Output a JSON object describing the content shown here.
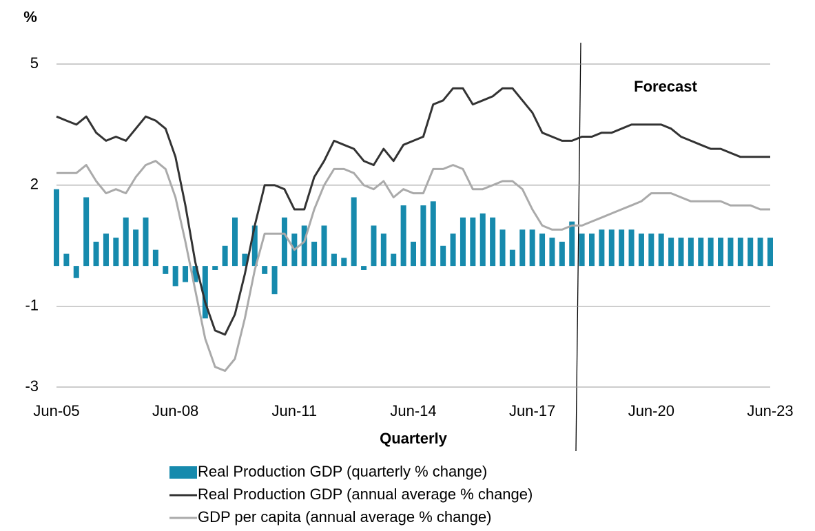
{
  "chart_data": {
    "type": "bar-line",
    "y_unit": "%",
    "x_title": "Quarterly",
    "annotation": "Forecast",
    "categories": [
      "Jun-05",
      null,
      null,
      null,
      null,
      null,
      null,
      null,
      null,
      null,
      null,
      null,
      "Jun-08",
      null,
      null,
      null,
      null,
      null,
      null,
      null,
      null,
      null,
      null,
      null,
      "Jun-11",
      null,
      null,
      null,
      null,
      null,
      null,
      null,
      null,
      null,
      null,
      null,
      "Jun-14",
      null,
      null,
      null,
      null,
      null,
      null,
      null,
      null,
      null,
      null,
      null,
      "Jun-17",
      null,
      null,
      null,
      null,
      null,
      null,
      null,
      null,
      null,
      null,
      null,
      "Jun-20",
      null,
      null,
      null,
      null,
      null,
      null,
      null,
      null,
      null,
      null,
      null,
      "Jun-23"
    ],
    "series": [
      {
        "name": "Real Production GDP (quarterly % change)",
        "kind": "bar",
        "color": "#168aad",
        "values": [
          1.9,
          0.3,
          -0.3,
          1.7,
          0.6,
          0.8,
          0.7,
          1.2,
          0.9,
          1.2,
          0.4,
          -0.2,
          -0.5,
          -0.4,
          -0.4,
          -1.3,
          -0.1,
          0.5,
          1.2,
          0.3,
          1.0,
          -0.2,
          -0.7,
          1.2,
          0.8,
          1.0,
          0.6,
          1.0,
          0.3,
          0.2,
          1.7,
          -0.1,
          1.0,
          0.8,
          0.3,
          1.5,
          0.6,
          1.5,
          1.6,
          0.5,
          0.8,
          1.2,
          1.2,
          1.3,
          1.2,
          0.9,
          0.4,
          0.9,
          0.9,
          0.8,
          0.7,
          0.6,
          1.1,
          0.8,
          0.8,
          0.9,
          0.9,
          0.9,
          0.9,
          0.8,
          0.8,
          0.8,
          0.7,
          0.7,
          0.7,
          0.7,
          0.7,
          0.7,
          0.7,
          0.7,
          0.7,
          0.7,
          0.7
        ]
      },
      {
        "name": "Real Production GDP (annual average % change)",
        "kind": "line",
        "color": "#333333",
        "values": [
          3.7,
          3.6,
          3.5,
          3.7,
          3.3,
          3.1,
          3.2,
          3.1,
          3.4,
          3.7,
          3.6,
          3.4,
          2.7,
          1.5,
          0.1,
          -0.9,
          -1.6,
          -1.7,
          -1.2,
          -0.2,
          1.0,
          2.0,
          2.0,
          1.9,
          1.4,
          1.4,
          2.2,
          2.6,
          3.1,
          3.0,
          2.9,
          2.6,
          2.5,
          2.9,
          2.6,
          3.0,
          3.1,
          3.2,
          4.0,
          4.1,
          4.4,
          4.4,
          4.0,
          4.1,
          4.2,
          4.4,
          4.4,
          4.1,
          3.8,
          3.3,
          3.2,
          3.1,
          3.1,
          3.2,
          3.2,
          3.3,
          3.3,
          3.4,
          3.5,
          3.5,
          3.5,
          3.5,
          3.4,
          3.2,
          3.1,
          3.0,
          2.9,
          2.9,
          2.8,
          2.7,
          2.7,
          2.7,
          2.7
        ]
      },
      {
        "name": "GDP per capita (annual average % change)",
        "kind": "line",
        "color": "#aaaaaa",
        "values": [
          2.3,
          2.3,
          2.3,
          2.5,
          2.1,
          1.8,
          1.9,
          1.8,
          2.2,
          2.5,
          2.6,
          2.4,
          1.7,
          0.6,
          -0.6,
          -1.8,
          -2.5,
          -2.6,
          -2.3,
          -1.3,
          -0.1,
          0.8,
          0.8,
          0.8,
          0.4,
          0.6,
          1.4,
          2.0,
          2.4,
          2.4,
          2.3,
          2.0,
          1.9,
          2.1,
          1.7,
          1.9,
          1.8,
          1.8,
          2.4,
          2.4,
          2.5,
          2.4,
          1.9,
          1.9,
          2.0,
          2.1,
          2.1,
          1.9,
          1.4,
          1.0,
          0.9,
          0.9,
          1.0,
          1.0,
          1.1,
          1.2,
          1.3,
          1.4,
          1.5,
          1.6,
          1.8,
          1.8,
          1.8,
          1.7,
          1.6,
          1.6,
          1.6,
          1.6,
          1.5,
          1.5,
          1.5,
          1.4,
          1.4
        ]
      }
    ],
    "ylim": [
      -3,
      5
    ],
    "yticks": [
      5,
      2,
      -1,
      -3
    ],
    "grid": true,
    "legend": "bottom"
  }
}
